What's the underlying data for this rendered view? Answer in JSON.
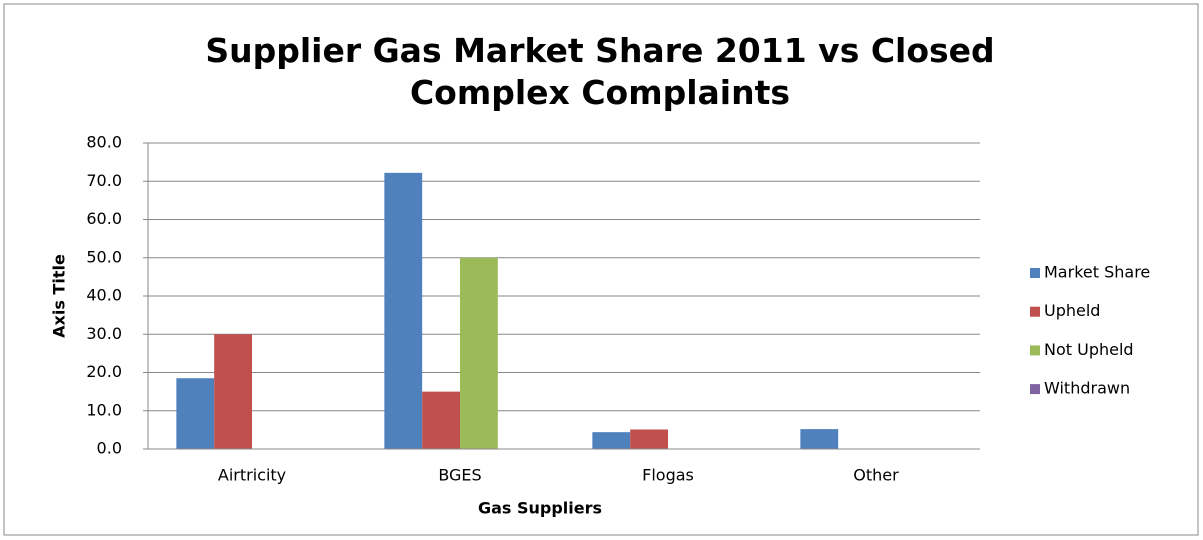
{
  "chart_data": {
    "type": "bar",
    "title": "Supplier Gas Market Share 2011 vs Closed Complex Complaints",
    "x_label": "Gas Suppliers",
    "y_label": "Axis Title",
    "categories": [
      "Airtricity",
      "BGES",
      "Flogas",
      "Other"
    ],
    "series": [
      {
        "name": "Market Share",
        "color": "#4f81bd",
        "values": [
          18.5,
          72.2,
          4.4,
          5.2
        ]
      },
      {
        "name": "Upheld",
        "color": "#c0504d",
        "values": [
          30,
          15,
          5.1,
          0
        ]
      },
      {
        "name": "Not Upheld",
        "color": "#9bbb59",
        "values": [
          0,
          50,
          0,
          0
        ]
      },
      {
        "name": "Withdrawn",
        "color": "#8064a2",
        "values": [
          0,
          0,
          0,
          0
        ]
      }
    ],
    "ylim": [
      0,
      80
    ],
    "yticks": [
      {
        "value": 0,
        "label": "0.0"
      },
      {
        "value": 10,
        "label": "10.0"
      },
      {
        "value": 20,
        "label": "20.0"
      },
      {
        "value": 30,
        "label": "30.0"
      },
      {
        "value": 40,
        "label": "40.0"
      },
      {
        "value": 50,
        "label": "50.0"
      },
      {
        "value": 60,
        "label": "60.0"
      },
      {
        "value": 70,
        "label": "70.0"
      },
      {
        "value": 80,
        "label": "80.0"
      }
    ],
    "grid": true,
    "legend": "right"
  }
}
